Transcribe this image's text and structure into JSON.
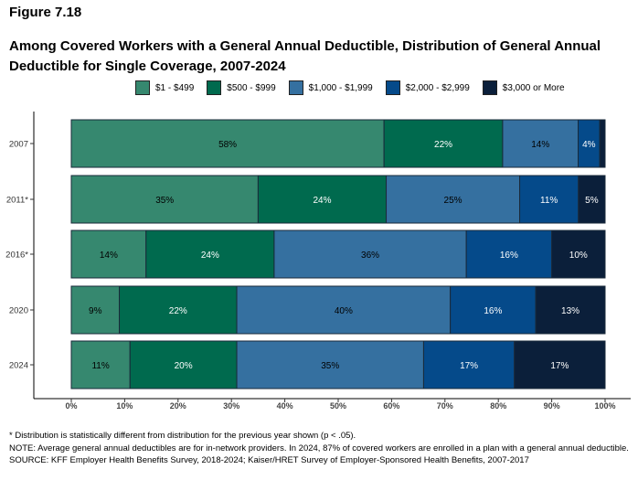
{
  "header": {
    "figure": "Figure 7.18",
    "title": "Among Covered Workers with a General Annual Deductible, Distribution of General Annual Deductible for Single Coverage, 2007-2024"
  },
  "chart_data": {
    "type": "bar",
    "orientation": "horizontal",
    "stacked": true,
    "categories": [
      "2007",
      "2011*",
      "2016*",
      "2020",
      "2024"
    ],
    "series": [
      {
        "name": "$1 - $499",
        "color": "#36886f",
        "values": [
          58,
          35,
          14,
          9,
          11
        ]
      },
      {
        "name": "$500 - $999",
        "color": "#006a4e",
        "values": [
          22,
          24,
          24,
          22,
          20
        ]
      },
      {
        "name": "$1,000 - $1,999",
        "color": "#3570a0",
        "values": [
          14,
          25,
          36,
          40,
          35
        ]
      },
      {
        "name": "$2,000 - $2,999",
        "color": "#054a8a",
        "values": [
          4,
          11,
          16,
          16,
          17
        ]
      },
      {
        "name": "$3,000 or More",
        "color": "#0b1f3a",
        "values": [
          1,
          5,
          10,
          13,
          17
        ]
      }
    ],
    "xlim": [
      0,
      100
    ],
    "xticks": [
      "0%",
      "10%",
      "20%",
      "30%",
      "40%",
      "50%",
      "60%",
      "70%",
      "80%",
      "90%",
      "100%"
    ],
    "legend": "top",
    "grid": false
  },
  "notes": {
    "asterisk": "* Distribution is statistically different from distribution for the previous year shown (p < .05).",
    "note": "NOTE: Average general annual deductibles are for in-network providers. In 2024, 87% of covered workers are enrolled in a plan with a general annual deductible.",
    "source": "SOURCE: KFF Employer Health Benefits Survey, 2018-2024; Kaiser/HRET Survey of Employer-Sponsored Health Benefits, 2007-2017"
  }
}
